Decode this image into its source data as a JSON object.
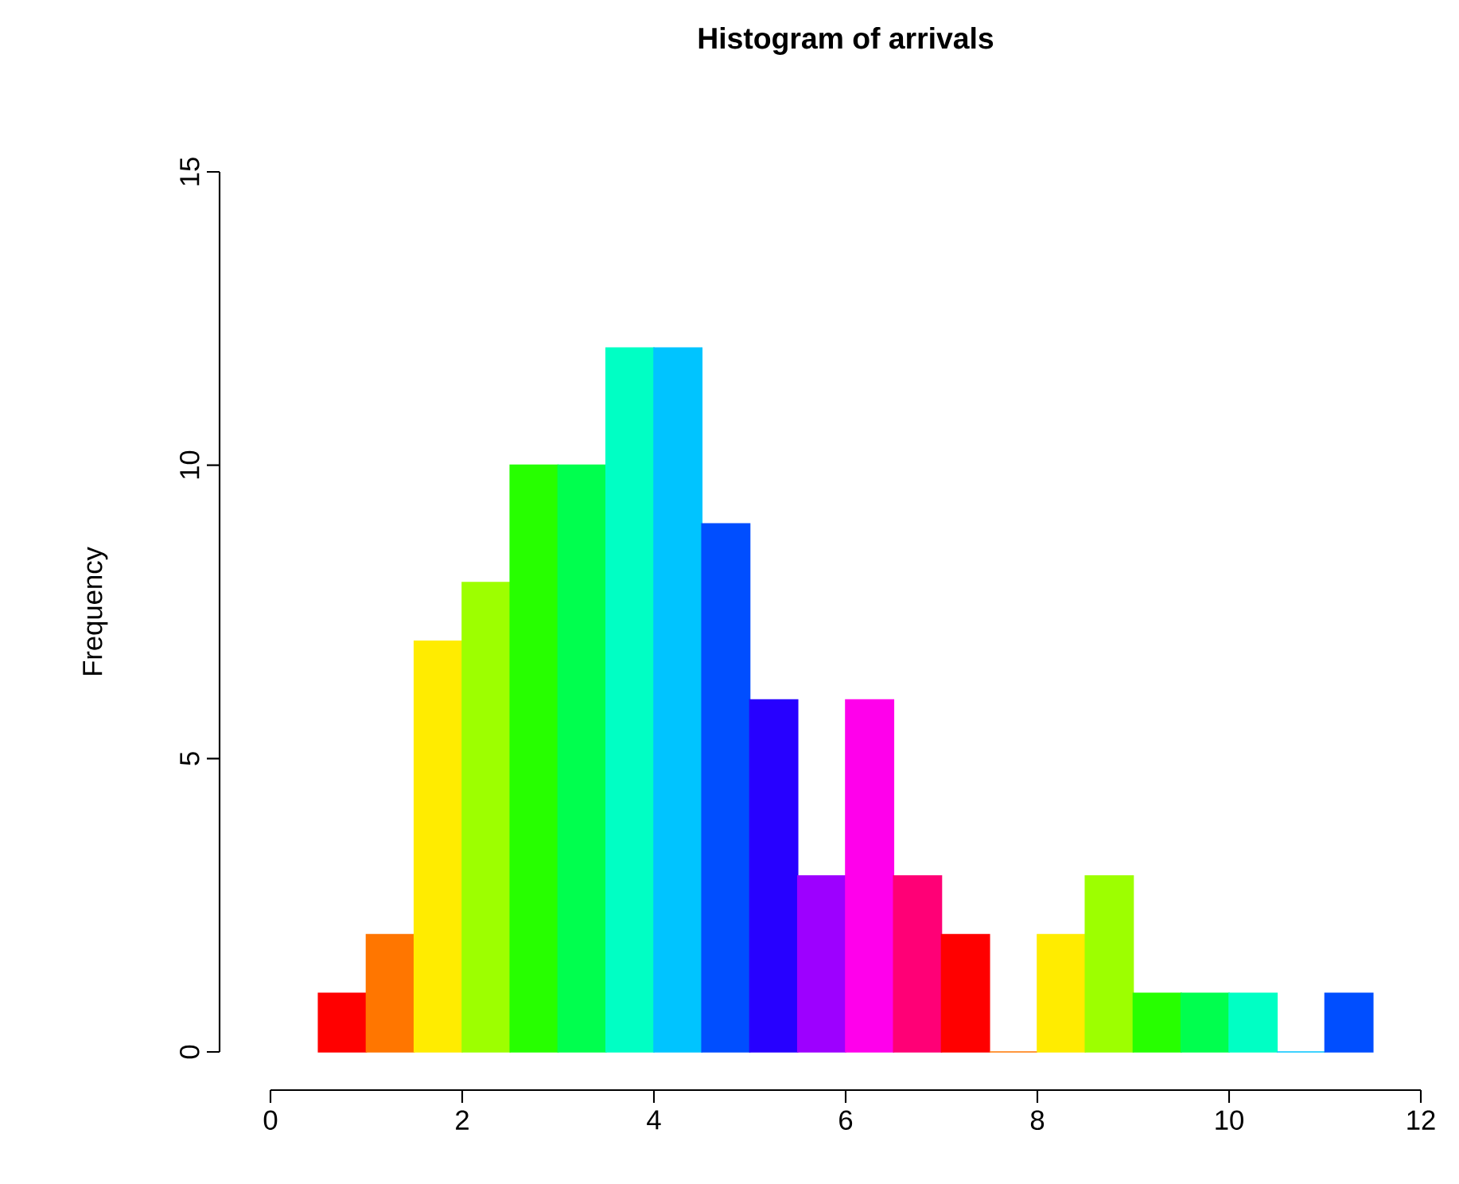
{
  "chart_data": {
    "type": "histogram",
    "title": "Histogram of arrivals",
    "ylabel": "Frequency",
    "bins": [
      0.5,
      1,
      1.5,
      2,
      2.5,
      3,
      3.5,
      4,
      4.5,
      5,
      5.5,
      6,
      6.5,
      7,
      7.5,
      8,
      8.5,
      9,
      9.5,
      10,
      10.5,
      11,
      11.5
    ],
    "values": [
      1,
      2,
      7,
      8,
      10,
      10,
      12,
      12,
      9,
      6,
      3,
      6,
      3,
      2,
      0,
      2,
      3,
      1,
      1,
      1,
      0,
      1
    ],
    "colors": [
      "#ff0000",
      "#ff7600",
      "#ffec00",
      "#9dff00",
      "#27ff00",
      "#00ff4e",
      "#00ffc4",
      "#00c4ff",
      "#004eff",
      "#2700ff",
      "#9d00ff",
      "#ff00eb",
      "#ff0076",
      "#ff0000",
      "#ff7600",
      "#ffec00",
      "#9dff00",
      "#27ff00",
      "#00ff4e",
      "#00ffc4",
      "#00c4ff",
      "#004eff"
    ],
    "xlim": [
      0,
      12
    ],
    "ylim": [
      0,
      15
    ],
    "xticks": [
      0,
      2,
      4,
      6,
      8,
      10,
      12
    ],
    "yticks": [
      0,
      5,
      10,
      15
    ]
  }
}
